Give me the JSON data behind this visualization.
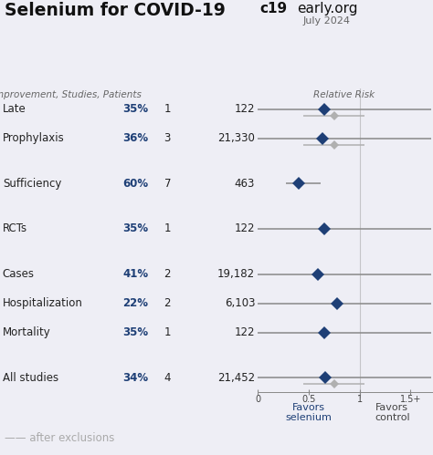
{
  "title_left": "Selenium for COVID-19",
  "title_right_bold": "c19",
  "title_right_normal": "early.org",
  "subtitle_right": "July 2024",
  "header_left": "Improvement, Studies, Patients",
  "header_right": "Relative Risk",
  "bg_color": "#eeeef5",
  "rows": [
    {
      "label": "All studies",
      "improvement": "34%",
      "studies": "4",
      "patients": "21,452",
      "point": 0.66,
      "ci_low": 0.0,
      "ci_high": 1.7,
      "ci_low2": 0.45,
      "ci_high2": 1.05,
      "gray_point": 0.75,
      "has_gray": true,
      "group_sep_before": false
    },
    {
      "label": "Mortality",
      "improvement": "35%",
      "studies": "1",
      "patients": "122",
      "point": 0.65,
      "ci_low": 0.0,
      "ci_high": 1.7,
      "has_gray": false,
      "group_sep_before": true
    },
    {
      "label": "Hospitalization",
      "improvement": "22%",
      "studies": "2",
      "patients": "6,103",
      "point": 0.78,
      "ci_low": 0.0,
      "ci_high": 1.7,
      "has_gray": false,
      "group_sep_before": false
    },
    {
      "label": "Cases",
      "improvement": "41%",
      "studies": "2",
      "patients": "19,182",
      "point": 0.59,
      "ci_low": 0.0,
      "ci_high": 1.7,
      "has_gray": false,
      "group_sep_before": false
    },
    {
      "label": "RCTs",
      "improvement": "35%",
      "studies": "1",
      "patients": "122",
      "point": 0.65,
      "ci_low": 0.0,
      "ci_high": 1.7,
      "has_gray": false,
      "group_sep_before": true
    },
    {
      "label": "Sufficiency",
      "improvement": "60%",
      "studies": "7",
      "patients": "463",
      "point": 0.4,
      "ci_low": 0.28,
      "ci_high": 0.62,
      "has_gray": false,
      "group_sep_before": true
    },
    {
      "label": "Prophylaxis",
      "improvement": "36%",
      "studies": "3",
      "patients": "21,330",
      "point": 0.64,
      "ci_low": 0.0,
      "ci_high": 1.7,
      "ci_low2": 0.45,
      "ci_high2": 1.05,
      "gray_point": 0.75,
      "has_gray": true,
      "group_sep_before": true
    },
    {
      "label": "Late",
      "improvement": "35%",
      "studies": "1",
      "patients": "122",
      "point": 0.65,
      "ci_low": 0.0,
      "ci_high": 1.7,
      "ci_low2": 0.45,
      "ci_high2": 1.05,
      "gray_point": 0.75,
      "has_gray": true,
      "group_sep_before": false
    }
  ],
  "x_min": 0,
  "x_max": 1.72,
  "x_ticks": [
    0,
    0.5,
    1.0,
    1.5
  ],
  "x_tick_labels": [
    "0",
    "0.5",
    "1",
    "1.5+"
  ],
  "vline_x": 1.0,
  "diamond_color": "#1e3f76",
  "ci_color": "#888888",
  "ci_gray_color": "#b0b0b0",
  "favors_left": "Favors\nselenium",
  "favors_right": "Favors\ncontrol",
  "after_exclusions_text": "—— after exclusions",
  "improvement_color": "#1e3f76",
  "label_color": "#222222"
}
